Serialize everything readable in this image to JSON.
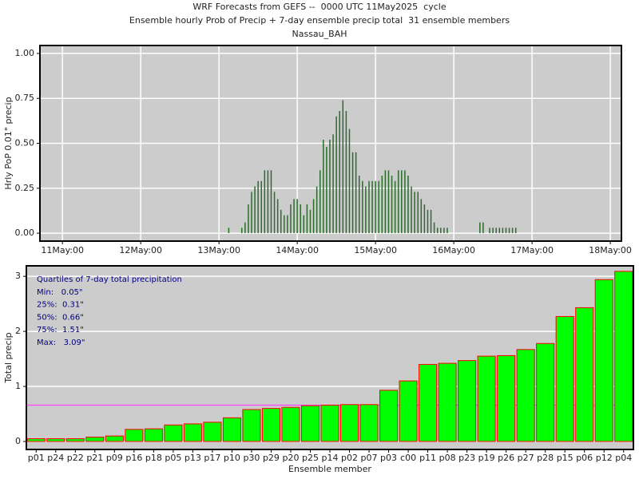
{
  "chart_data": [
    {
      "type": "bar",
      "title": "WRF Forecasts from GEFS --  0000 UTC 11May2025  cycle",
      "subtitle": "Ensemble hourly Prob of Precip + 7-day ensemble precip total  31 ensemble members",
      "location": "Nassau_BAH",
      "ylabel": "Hrly PoP 0.01\" precip",
      "color": "#2d6b2d",
      "x": [
        51,
        55,
        56,
        57,
        58,
        59,
        60,
        61,
        62,
        63,
        64,
        65,
        66,
        67,
        68,
        69,
        70,
        71,
        72,
        73,
        74,
        75,
        76,
        77,
        78,
        79,
        80,
        81,
        82,
        83,
        84,
        85,
        86,
        87,
        88,
        89,
        90,
        91,
        92,
        93,
        94,
        95,
        96,
        97,
        98,
        99,
        100,
        101,
        102,
        103,
        104,
        105,
        106,
        107,
        108,
        109,
        110,
        111,
        112,
        113,
        114,
        115,
        116,
        117,
        118,
        128,
        129,
        131,
        132,
        133,
        134,
        135,
        136,
        137,
        138,
        139
      ],
      "values": [
        0.03,
        0.03,
        0.06,
        0.16,
        0.23,
        0.26,
        0.29,
        0.29,
        0.35,
        0.35,
        0.35,
        0.23,
        0.19,
        0.13,
        0.1,
        0.1,
        0.16,
        0.19,
        0.19,
        0.16,
        0.1,
        0.16,
        0.13,
        0.19,
        0.26,
        0.35,
        0.52,
        0.48,
        0.52,
        0.55,
        0.65,
        0.68,
        0.74,
        0.68,
        0.58,
        0.45,
        0.45,
        0.32,
        0.29,
        0.26,
        0.29,
        0.29,
        0.29,
        0.29,
        0.32,
        0.35,
        0.35,
        0.32,
        0.29,
        0.35,
        0.35,
        0.35,
        0.32,
        0.26,
        0.23,
        0.23,
        0.19,
        0.16,
        0.13,
        0.13,
        0.06,
        0.03,
        0.03,
        0.03,
        0.03,
        0.06,
        0.06,
        0.03,
        0.03,
        0.03,
        0.03,
        0.03,
        0.03,
        0.03,
        0.03,
        0.03
      ],
      "xlim": [
        -6.9,
        171.4
      ],
      "xticks": [
        {
          "value": 0,
          "label": "11May:00"
        },
        {
          "value": 24,
          "label": "12May:00"
        },
        {
          "value": 48,
          "label": "13May:00"
        },
        {
          "value": 72,
          "label": "14May:00"
        },
        {
          "value": 96,
          "label": "15May:00"
        },
        {
          "value": 120,
          "label": "16May:00"
        },
        {
          "value": 144,
          "label": "17May:00"
        },
        {
          "value": 168,
          "label": "18May:00"
        }
      ],
      "ylim": [
        -0.044,
        1.044
      ],
      "yticks": [
        {
          "value": 0,
          "label": "0.00"
        },
        {
          "value": 0.25,
          "label": "0.25"
        },
        {
          "value": 0.5,
          "label": "0.50"
        },
        {
          "value": 0.75,
          "label": "0.75"
        },
        {
          "value": 1,
          "label": "1.00"
        }
      ],
      "grid": true
    },
    {
      "type": "bar",
      "ylabel": "Total precip",
      "xlabel": "Ensemble member",
      "color": "#00ff00",
      "edgecolor": "#ff0000",
      "categories": [
        "p01",
        "p24",
        "p22",
        "p21",
        "p09",
        "p16",
        "p18",
        "p05",
        "p13",
        "p17",
        "p10",
        "p30",
        "p29",
        "p20",
        "p25",
        "p14",
        "p02",
        "p07",
        "p03",
        "c00",
        "p11",
        "p08",
        "p23",
        "p19",
        "p26",
        "p27",
        "p28",
        "p15",
        "p06",
        "p12",
        "p04"
      ],
      "values": [
        0.05,
        0.05,
        0.05,
        0.08,
        0.1,
        0.22,
        0.23,
        0.3,
        0.32,
        0.35,
        0.43,
        0.58,
        0.6,
        0.62,
        0.65,
        0.66,
        0.67,
        0.67,
        0.93,
        1.1,
        1.4,
        1.42,
        1.47,
        1.55,
        1.56,
        1.67,
        1.78,
        2.27,
        2.43,
        2.94,
        3.09
      ],
      "ylim": [
        -0.145,
        3.19
      ],
      "yticks": [
        0,
        1,
        2,
        3
      ],
      "median_line": {
        "value": 0.66,
        "color": "#ff44ff"
      },
      "annotations": [
        "Quartiles of 7-day total precipitation",
        "Min:   0.05\"",
        "25%:  0.31\"",
        "50%:  0.66\"",
        "75%:  1.51\"",
        "Max:   3.09\""
      ],
      "grid": true
    }
  ]
}
